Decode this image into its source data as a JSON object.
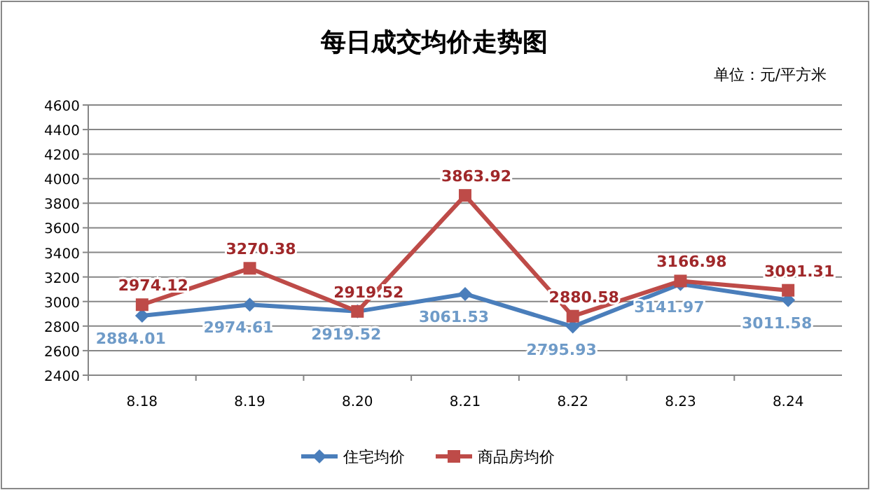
{
  "chart_data": {
    "type": "line",
    "title": "每日成交均价走势图",
    "annotations": [
      "单位：元/平方米"
    ],
    "categories": [
      "8.18",
      "8.19",
      "8.20",
      "8.21",
      "8.22",
      "8.23",
      "8.24"
    ],
    "series": [
      {
        "name": "住宅均价",
        "color": "#4a7ebb",
        "marker": "diamond",
        "values": [
          2884.01,
          2974.61,
          2919.52,
          3061.53,
          2795.93,
          3141.97,
          3011.58
        ]
      },
      {
        "name": "商品房均价",
        "color": "#be4b48",
        "marker": "square",
        "values": [
          2974.12,
          3270.38,
          2919.52,
          3863.92,
          2880.58,
          3166.98,
          3091.31
        ]
      }
    ],
    "ylim": [
      2400,
      4600
    ],
    "yticks": [
      2400,
      2600,
      2800,
      3000,
      3200,
      3400,
      3600,
      3800,
      4000,
      4200,
      4400,
      4600
    ],
    "grid": "y",
    "legend": "bottom",
    "data_labels": true
  }
}
